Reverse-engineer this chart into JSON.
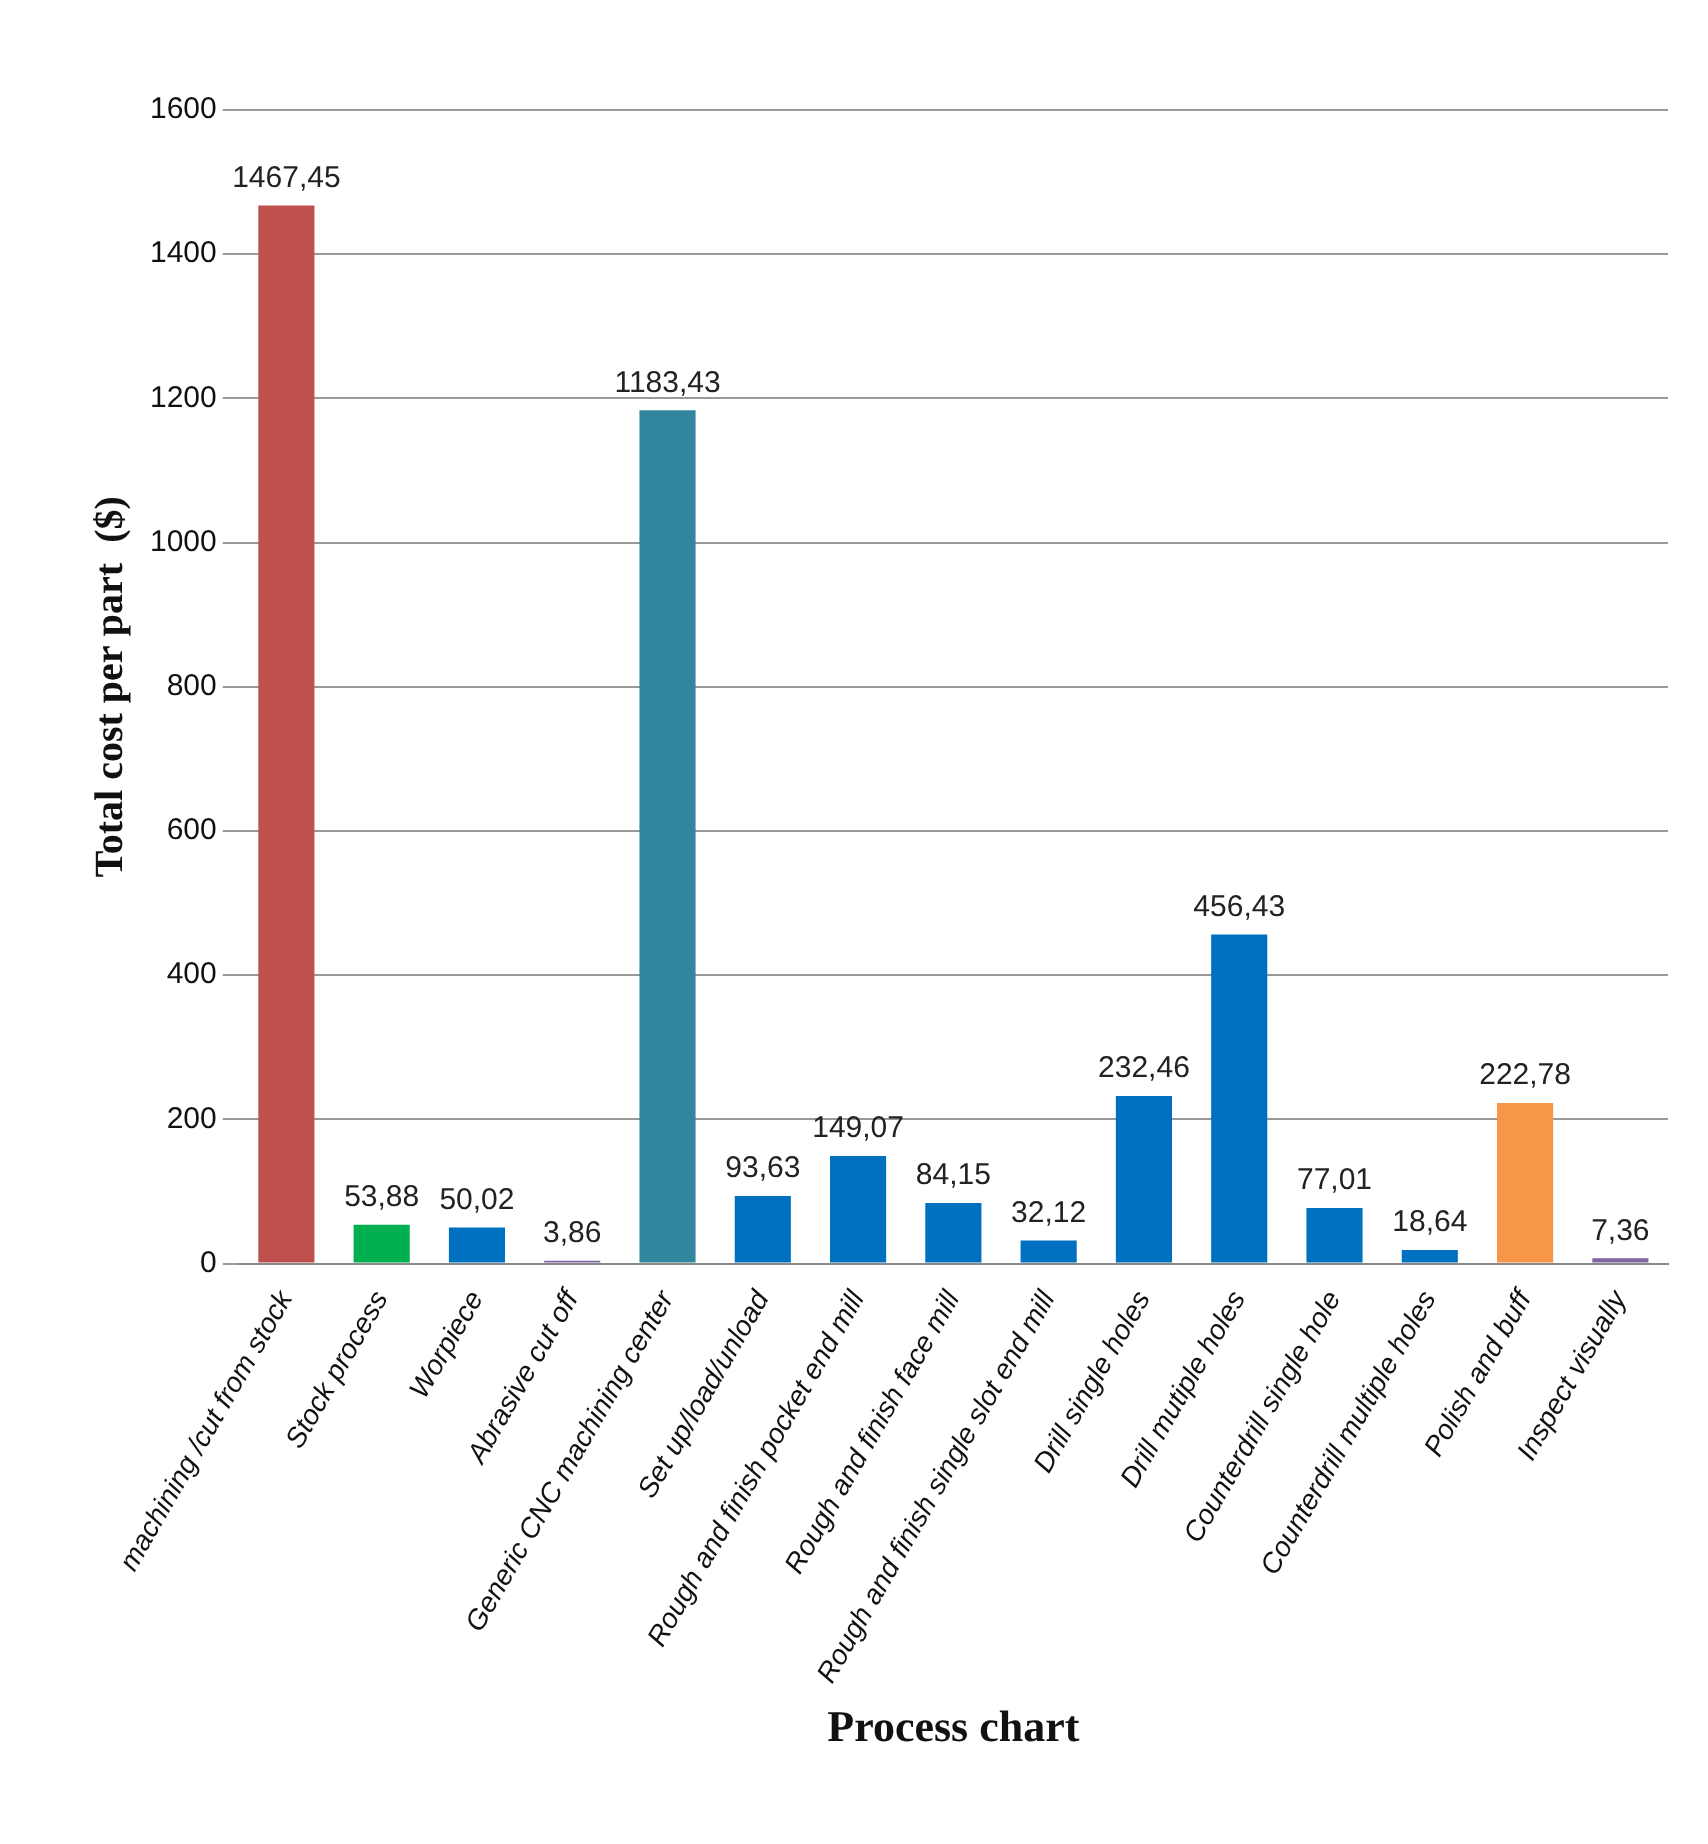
{
  "chart_data": {
    "type": "bar",
    "xlabel": "Process chart",
    "ylabel": "Total cost per part  ($)",
    "categories": [
      "machining /cut from stock",
      "Stock process",
      "Worpiece",
      "Abrasive cut off",
      "Generic CNC machining center",
      "Set up/load/unload",
      "Rough and finish pocket end mill",
      "Rough and finish face mill",
      "Rough and finish single slot end mill",
      "Drill single holes",
      "Drill mutiple holes",
      "Counterdrill single hole",
      "Counterdrill multiple holes",
      "Polish and buff",
      "Inspect visually"
    ],
    "values": [
      1467.45,
      53.88,
      50.02,
      3.86,
      1183.43,
      93.63,
      149.07,
      84.15,
      32.12,
      232.46,
      456.43,
      77.01,
      18.64,
      222.78,
      7.36
    ],
    "colors": [
      "#c0504d",
      "#00b050",
      "#0070c0",
      "#8064a2",
      "#31859c",
      "#0070c0",
      "#0070c0",
      "#0070c0",
      "#0070c0",
      "#0070c0",
      "#0070c0",
      "#0070c0",
      "#0070c0",
      "#f79646",
      "#8064a2"
    ],
    "value_labels": [
      "1467,45",
      "53,88",
      "50,02",
      "3,86",
      "1183,43",
      "93,63",
      "149,07",
      "84,15",
      "32,12",
      "232,46",
      "456,43",
      "77,01",
      "18,64",
      "222,78",
      "7,36"
    ],
    "ylim": [
      0,
      1600
    ],
    "yticks": [
      0,
      200,
      400,
      600,
      800,
      1000,
      1200,
      1400,
      1600
    ],
    "grid": "y",
    "legend": false
  }
}
